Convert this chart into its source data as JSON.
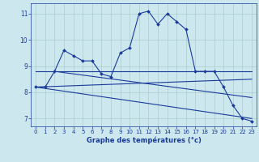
{
  "xlabel": "Graphe des températures (°c)",
  "background_color": "#cce8ee",
  "line_color": "#1a3a9a",
  "grid_color": "#aacccc",
  "xlim": [
    -0.5,
    23.5
  ],
  "ylim": [
    6.7,
    11.4
  ],
  "yticks": [
    7,
    8,
    9,
    10,
    11
  ],
  "xticks": [
    0,
    1,
    2,
    3,
    4,
    5,
    6,
    7,
    8,
    9,
    10,
    11,
    12,
    13,
    14,
    15,
    16,
    17,
    18,
    19,
    20,
    21,
    22,
    23
  ],
  "series": [
    {
      "x": [
        0,
        1,
        2,
        3,
        4,
        5,
        6,
        7,
        8,
        9,
        10,
        11,
        12,
        13,
        14,
        15,
        16,
        17,
        18,
        19,
        20,
        21,
        22,
        23
      ],
      "y": [
        8.2,
        8.2,
        8.8,
        9.6,
        9.4,
        9.2,
        9.2,
        8.7,
        8.6,
        9.5,
        9.7,
        11.0,
        11.1,
        10.6,
        11.0,
        10.7,
        10.4,
        8.8,
        8.8,
        8.8,
        8.2,
        7.5,
        7.0,
        6.9
      ],
      "marker": "D",
      "markersize": 2.0,
      "linewidth": 0.8
    },
    {
      "x": [
        0,
        23
      ],
      "y": [
        8.8,
        8.8
      ],
      "marker": null,
      "markersize": 0,
      "linewidth": 0.8
    },
    {
      "x": [
        0,
        23
      ],
      "y": [
        8.2,
        8.5
      ],
      "marker": null,
      "markersize": 0,
      "linewidth": 0.8
    },
    {
      "x": [
        0,
        23
      ],
      "y": [
        8.2,
        7.0
      ],
      "marker": null,
      "markersize": 0,
      "linewidth": 0.8
    },
    {
      "x": [
        2,
        23
      ],
      "y": [
        8.8,
        7.8
      ],
      "marker": null,
      "markersize": 0,
      "linewidth": 0.8
    }
  ]
}
